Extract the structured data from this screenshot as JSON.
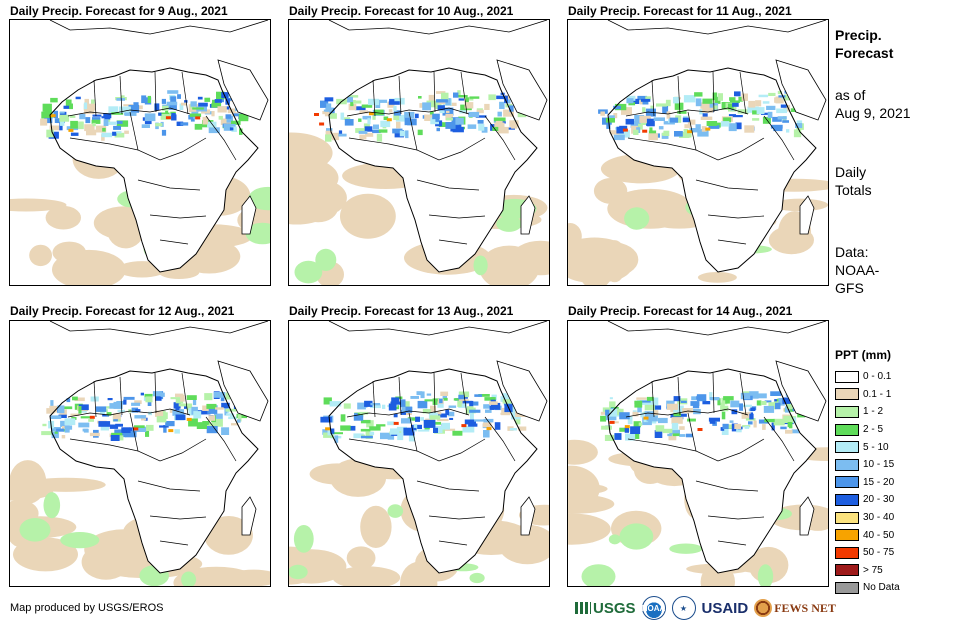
{
  "panels": [
    {
      "title": "Daily Precip. Forecast for 9 Aug., 2021",
      "variant": 0
    },
    {
      "title": "Daily Precip. Forecast for 10 Aug., 2021",
      "variant": 1
    },
    {
      "title": "Daily Precip. Forecast for 11 Aug., 2021",
      "variant": 2
    },
    {
      "title": "Daily Precip. Forecast for 12 Aug., 2021",
      "variant": 3
    },
    {
      "title": "Daily Precip. Forecast for 13 Aug., 2021",
      "variant": 4
    },
    {
      "title": "Daily Precip. Forecast for 14 Aug., 2021",
      "variant": 5
    }
  ],
  "side": {
    "title_line1": "Precip.",
    "title_line2": "Forecast",
    "asof_line1": "as of",
    "asof_line2": "Aug 9, 2021",
    "totals_line1": "Daily",
    "totals_line2": "Totals",
    "data_line1": "Data:",
    "data_line2": "NOAA-",
    "data_line3": "GFS"
  },
  "legend": {
    "title": "PPT (mm)",
    "items": [
      {
        "label": "0 - 0.1",
        "color": "#ffffff"
      },
      {
        "label": "0.1 - 1",
        "color": "#ead6b8"
      },
      {
        "label": "1 - 2",
        "color": "#b6f2a9"
      },
      {
        "label": "2 - 5",
        "color": "#5fdc5a"
      },
      {
        "label": "5 - 10",
        "color": "#b3ecf6"
      },
      {
        "label": "10 - 15",
        "color": "#7cbdf1"
      },
      {
        "label": "15 - 20",
        "color": "#4c95ea"
      },
      {
        "label": "20 - 30",
        "color": "#1d5ee0"
      },
      {
        "label": "30 - 40",
        "color": "#fbe27e"
      },
      {
        "label": "40 - 50",
        "color": "#f7a300"
      },
      {
        "label": "50 - 75",
        "color": "#f23a00"
      },
      {
        "label": "> 75",
        "color": "#9e1a1a"
      },
      {
        "label": "No Data",
        "color": "#999999"
      }
    ]
  },
  "footer": {
    "credit": "Map produced by USGS/EROS",
    "logo_usgs": "USGS",
    "logo_noaa": "NOAA",
    "logo_usaid": "USAID",
    "logo_fews": "FEWS NET"
  }
}
